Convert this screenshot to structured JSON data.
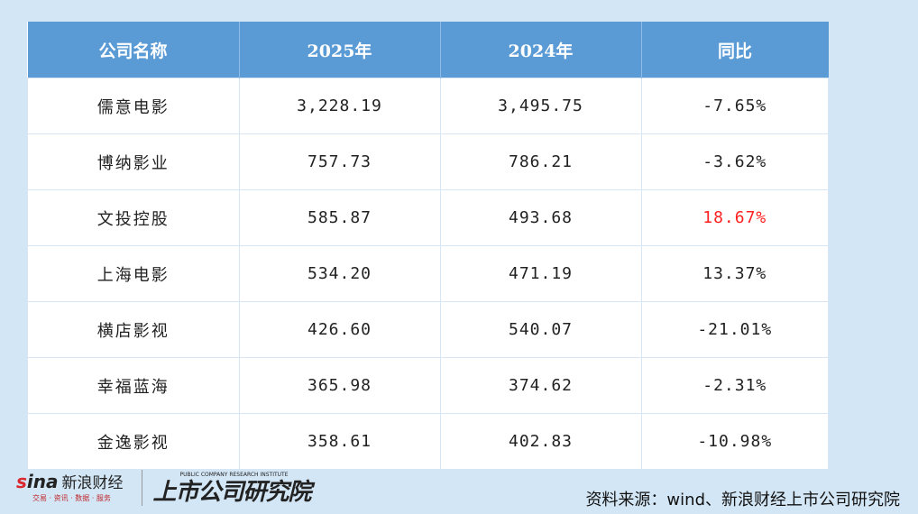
{
  "chart_data": {
    "type": "table",
    "columns": [
      "公司名称",
      "2025年",
      "2024年",
      "同比"
    ],
    "rows": [
      [
        "儒意电影",
        "3,228.19",
        "3,495.75",
        "-7.65%"
      ],
      [
        "博纳影业",
        "757.73",
        "786.21",
        "-3.62%"
      ],
      [
        "文投控股",
        "585.87",
        "493.68",
        "18.67%"
      ],
      [
        "上海电影",
        "534.20",
        "471.19",
        "13.37%"
      ],
      [
        "横店影视",
        "426.60",
        "540.07",
        "-21.01%"
      ],
      [
        "幸福蓝海",
        "365.98",
        "374.62",
        "-2.31%"
      ],
      [
        "金逸影视",
        "358.61",
        "402.83",
        "-10.98%"
      ]
    ],
    "highlight": {
      "row": 2,
      "column": 3,
      "color": "#ff2020"
    }
  },
  "colors": {
    "header_bg": "#5b9bd5",
    "page_bg": "#d3e6f5"
  },
  "footer": {
    "sina_logo": "sina",
    "sina_brand": "新浪财经",
    "sina_slogan": "交易 · 资讯 · 数据 · 服务",
    "institute_logo": "上市公司研究院",
    "institute_en": "PUBLIC COMPANY RESEARCH INSTITUTE",
    "source": "资料来源：wind、新浪财经上市公司研究院"
  }
}
